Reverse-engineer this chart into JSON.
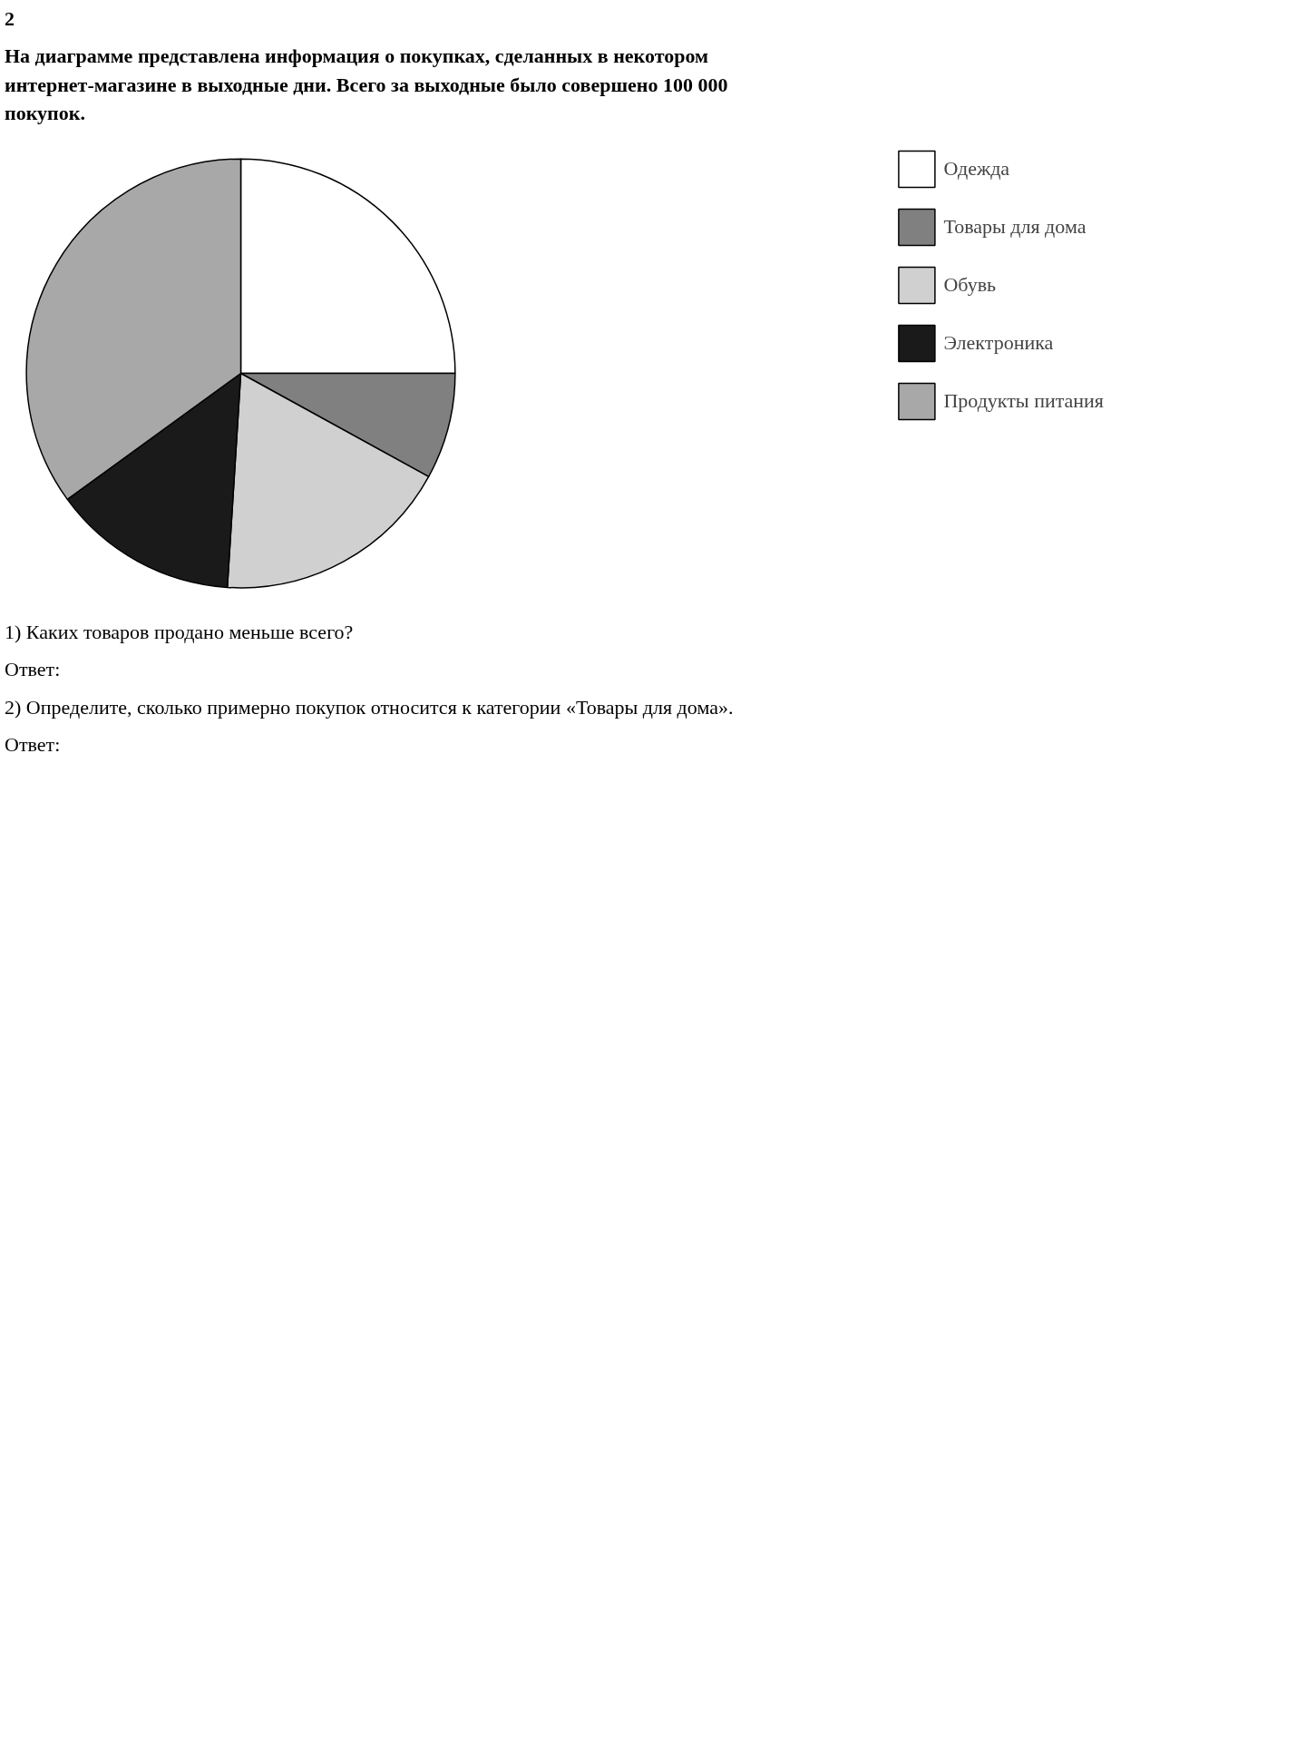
{
  "chart_data": {
    "type": "pie",
    "title": "На диаграмме представлена информация о покупках, сделанных в некотором интернет-магазине в выходные дни. Всего за выходные было совершено 100 000 покупок.",
    "categories": [
      "Одежда",
      "Товары для дома",
      "Обувь",
      "Электроника",
      "Продукты питания"
    ],
    "values": [
      25,
      8,
      18,
      14,
      35
    ],
    "colors": [
      "#ffffff",
      "#808080",
      "#d0d0d0",
      "#1a1a1a",
      "#a8a8a8"
    ],
    "legend": "right",
    "annotations": [
      "2",
      "1) Каких товаров продано меньше всего?",
      "Ответ:",
      "2) Определите, сколько примерно покупок относится к категории «Товары для дома».",
      "Ответ:"
    ]
  }
}
